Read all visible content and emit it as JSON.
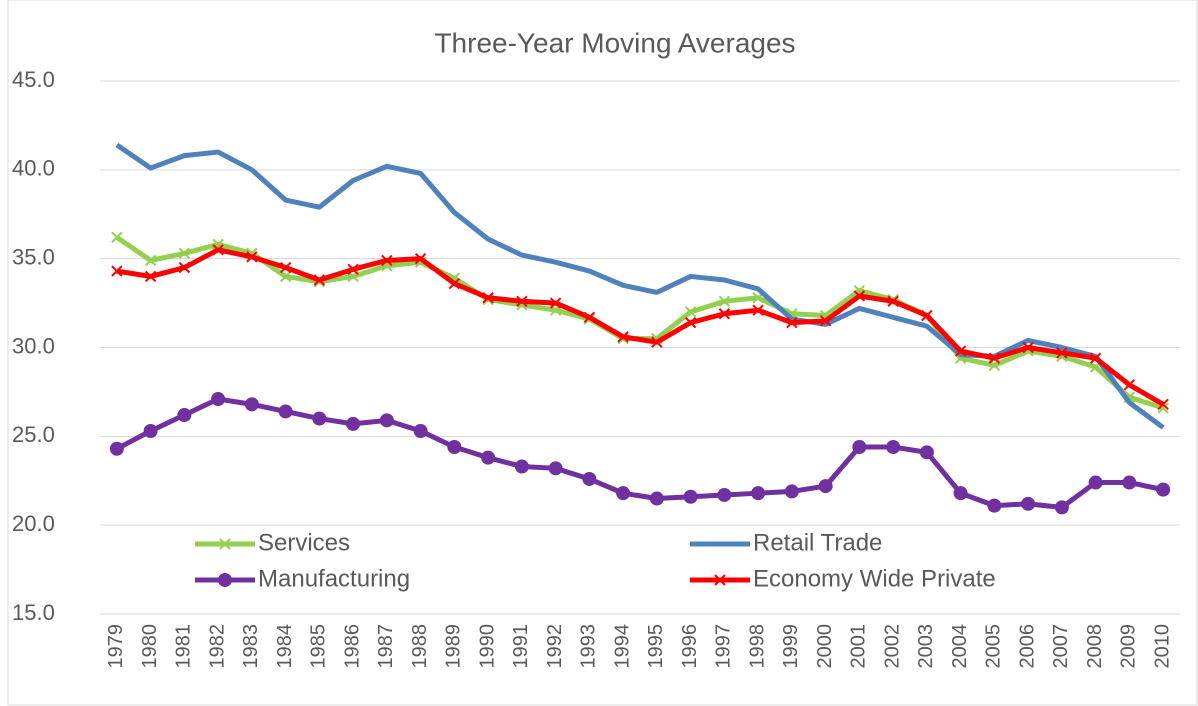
{
  "chart_data": {
    "type": "line",
    "title": "Three-Year Moving Averages",
    "categories": [
      "1979",
      "1980",
      "1981",
      "1982",
      "1983",
      "1984",
      "1985",
      "1986",
      "1987",
      "1988",
      "1989",
      "1990",
      "1991",
      "1992",
      "1993",
      "1994",
      "1995",
      "1996",
      "1997",
      "1998",
      "1999",
      "2000",
      "2001",
      "2002",
      "2003",
      "2004",
      "2005",
      "2006",
      "2007",
      "2008",
      "2009",
      "2010"
    ],
    "series": [
      {
        "name": "Services",
        "color": "#92d050",
        "marker": "x",
        "values": [
          36.2,
          34.9,
          35.3,
          35.8,
          35.3,
          34.0,
          33.7,
          34.0,
          34.6,
          34.8,
          33.9,
          32.7,
          32.4,
          32.1,
          31.6,
          30.5,
          30.5,
          32.0,
          32.6,
          32.8,
          31.9,
          31.8,
          33.2,
          32.7,
          31.8,
          29.4,
          29.0,
          29.8,
          29.5,
          28.9,
          27.2,
          26.6
        ]
      },
      {
        "name": "Retail Trade",
        "color": "#4f81bd",
        "marker": "none",
        "values": [
          41.4,
          40.1,
          40.8,
          41.0,
          40.0,
          38.3,
          37.9,
          39.4,
          40.2,
          39.8,
          37.6,
          36.1,
          35.2,
          34.8,
          34.3,
          33.5,
          33.1,
          34.0,
          33.8,
          33.3,
          31.6,
          31.3,
          32.2,
          31.7,
          31.2,
          29.6,
          29.5,
          30.4,
          30.0,
          29.5,
          26.9,
          25.5
        ]
      },
      {
        "name": "Manufacturing",
        "color": "#7030a0",
        "marker": "circle",
        "values": [
          24.3,
          25.3,
          26.2,
          27.1,
          26.8,
          26.4,
          26.0,
          25.7,
          25.9,
          25.3,
          24.4,
          23.8,
          23.3,
          23.2,
          22.6,
          21.8,
          21.5,
          21.6,
          21.7,
          21.8,
          21.9,
          22.2,
          24.4,
          24.4,
          24.1,
          21.8,
          21.1,
          21.2,
          21.0,
          22.4,
          22.4,
          22.0
        ]
      },
      {
        "name": "Economy Wide Private",
        "color": "#ff0000",
        "marker": "x",
        "values": [
          34.3,
          34.0,
          34.5,
          35.5,
          35.1,
          34.5,
          33.8,
          34.4,
          34.9,
          35.0,
          33.6,
          32.8,
          32.6,
          32.5,
          31.7,
          30.6,
          30.3,
          31.4,
          31.9,
          32.1,
          31.4,
          31.5,
          32.9,
          32.6,
          31.8,
          29.8,
          29.4,
          30.0,
          29.7,
          29.4,
          27.9,
          26.8
        ]
      }
    ],
    "ylim": [
      15,
      45
    ],
    "yticks": [
      {
        "value": 15,
        "label": "15.0"
      },
      {
        "value": 20,
        "label": "20.0"
      },
      {
        "value": 25,
        "label": "25.0"
      },
      {
        "value": 30,
        "label": "30.0"
      },
      {
        "value": 35,
        "label": "35.0"
      },
      {
        "value": 40,
        "label": "40.0"
      },
      {
        "value": 45,
        "label": "45.0"
      }
    ],
    "grid": true,
    "legend": "lower left"
  }
}
